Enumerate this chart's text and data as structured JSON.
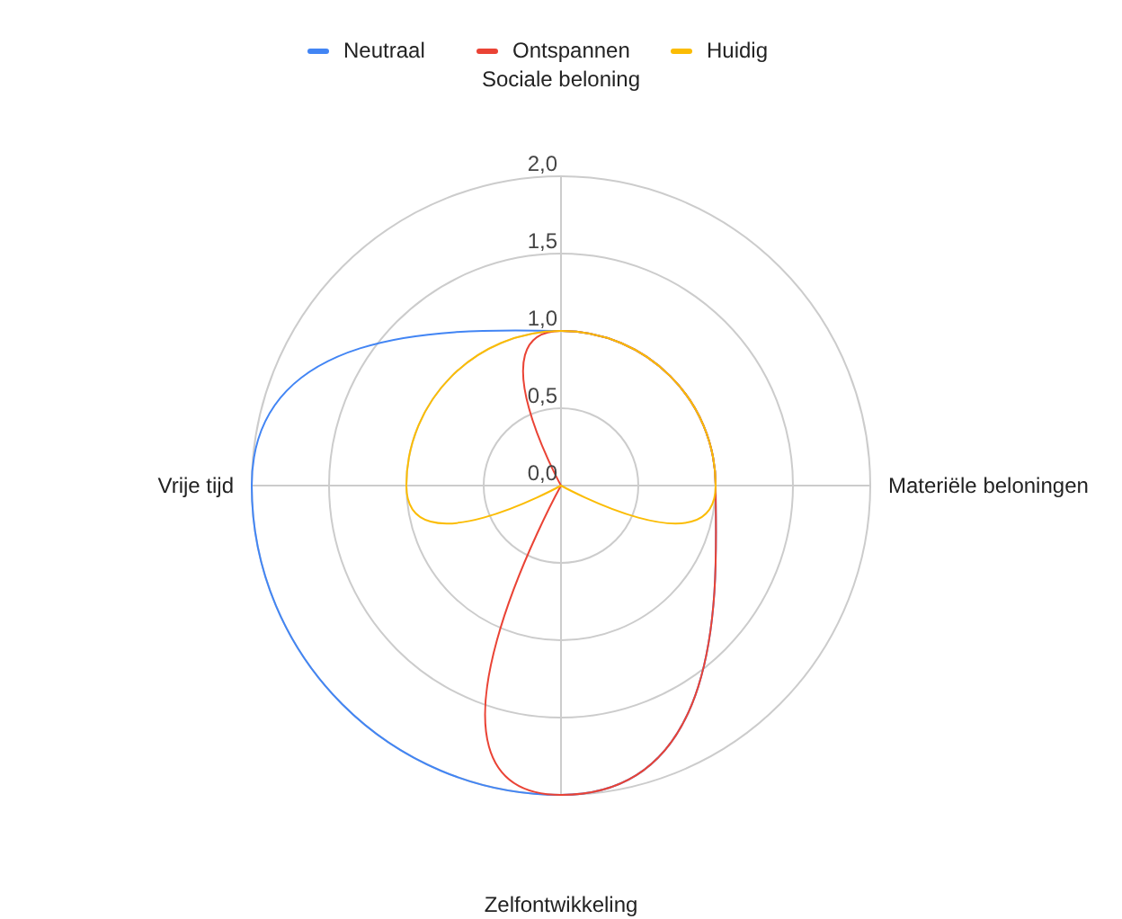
{
  "chart_data": {
    "type": "radar",
    "categories": [
      "Sociale beloning",
      "Materiële beloningen",
      "Zelfontwikkeling",
      "Vrije tijd"
    ],
    "series": [
      {
        "name": "Neutraal",
        "color": "#4285f4",
        "values": [
          1,
          1,
          2,
          2
        ]
      },
      {
        "name": "Ontspannen",
        "color": "#ea4335",
        "values": [
          1,
          1,
          2,
          0
        ]
      },
      {
        "name": "Huidig",
        "color": "#fbbc04",
        "values": [
          1,
          1,
          0,
          1
        ]
      }
    ],
    "ylim": [
      0,
      2
    ],
    "yticks": [
      {
        "value": 0,
        "label": "0,0"
      },
      {
        "value": 0.5,
        "label": "0,5"
      },
      {
        "value": 1,
        "label": "1,0"
      },
      {
        "value": 1.5,
        "label": "1,5"
      },
      {
        "value": 2,
        "label": "2,0"
      }
    ],
    "grid": true,
    "legend": "top"
  }
}
